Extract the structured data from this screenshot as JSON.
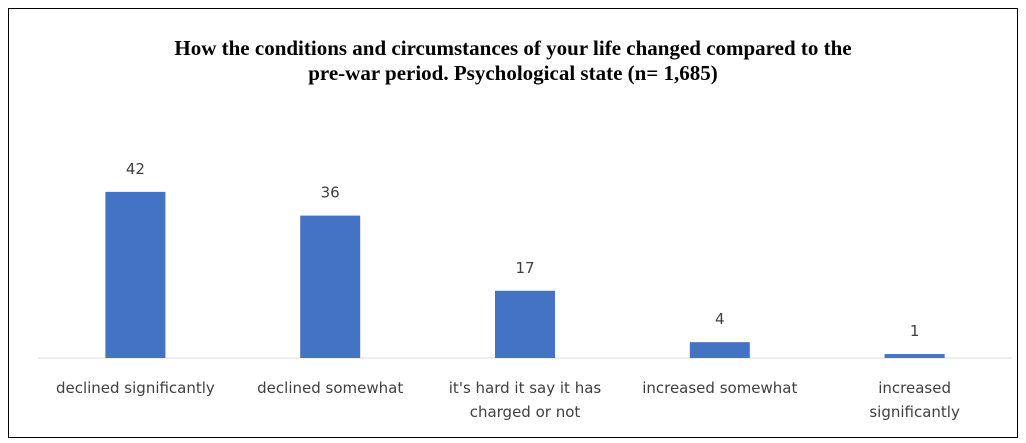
{
  "chart_data": {
    "type": "bar",
    "title": "How the conditions and circumstances of your life changed compared to the pre-war period.  Psychological state (n= 1,685)",
    "categories": [
      "declined significantly",
      "declined somewhat",
      "it's hard it say it has charged or not",
      "increased somewhat",
      "increased significantly"
    ],
    "values": [
      42,
      36,
      17,
      4,
      1
    ],
    "color": "#4472c4",
    "ylim": [
      0,
      45
    ]
  }
}
